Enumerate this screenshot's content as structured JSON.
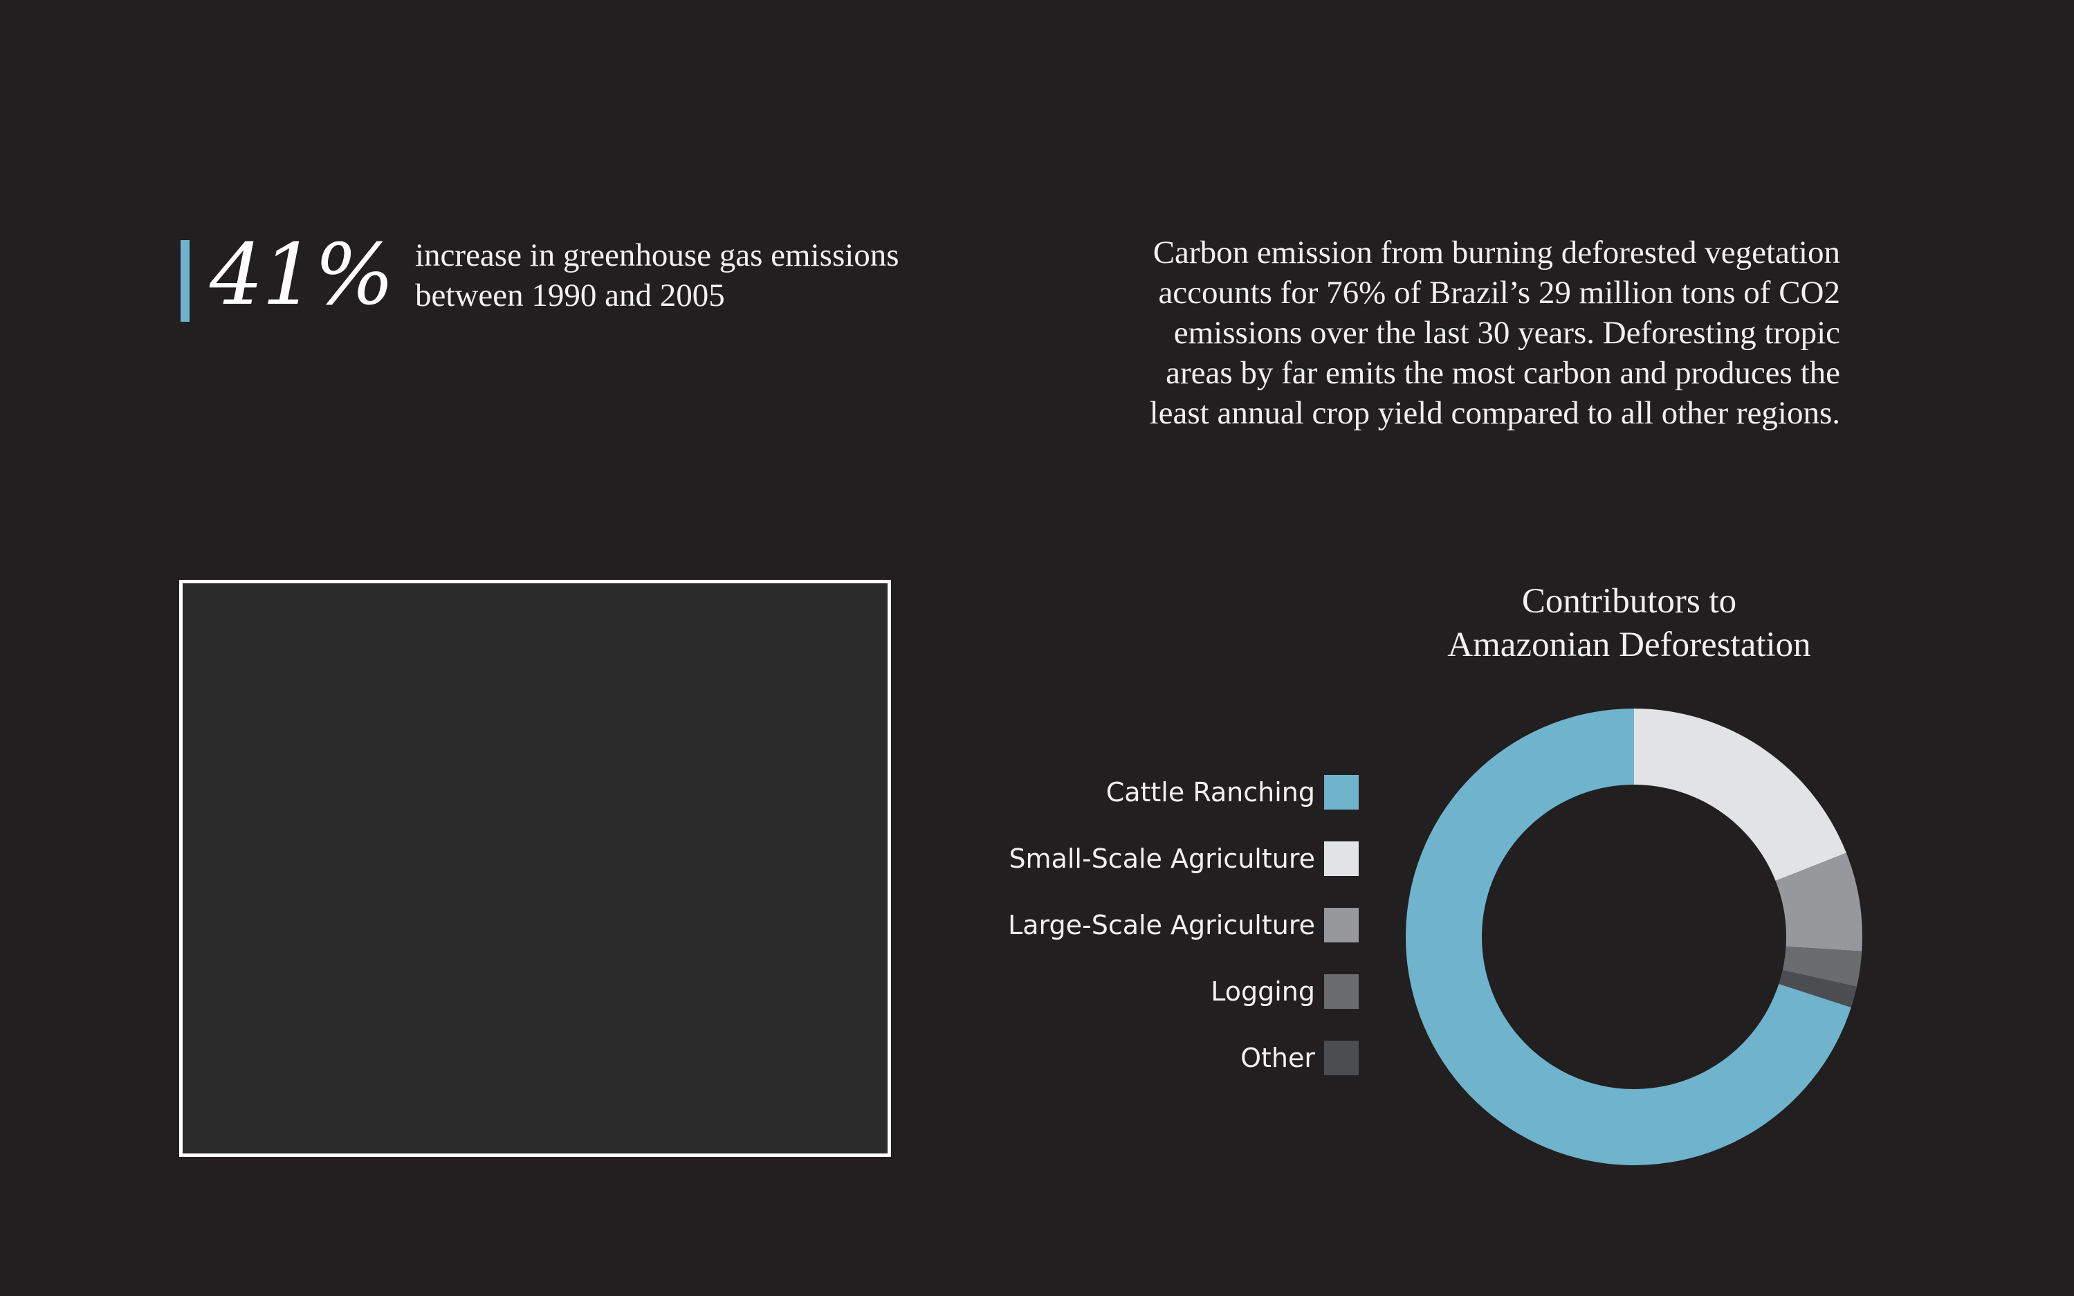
{
  "stat": {
    "value": "41%",
    "line1": "increase in greenhouse gas emissions",
    "line2": "between 1990 and 2005"
  },
  "paragraph": [
    "Carbon emission from burning deforested vegetation",
    "accounts for 76% of Brazil’s 29 million tons of CO2",
    "emissions over the last 30 years. Deforesting tropic",
    "areas by far emits the most carbon and produces the",
    "least annual crop yield compared to all other regions."
  ],
  "colors": {
    "background": "#221f20",
    "accent": "#6fb3cd"
  },
  "chart_data": {
    "type": "pie",
    "title_lines": [
      "Contributors to",
      "Amazonian Deforestation"
    ],
    "categories": [
      "Cattle Ranching",
      "Small-Scale Agriculture",
      "Large-Scale Agriculture",
      "Logging",
      "Other"
    ],
    "values": [
      70,
      19,
      7,
      2.5,
      1.5
    ],
    "colors": [
      "#6fb3cd",
      "#e2e3e4",
      "#97989b",
      "#6b6c6e",
      "#4c4d50"
    ],
    "legend_position": "left"
  }
}
